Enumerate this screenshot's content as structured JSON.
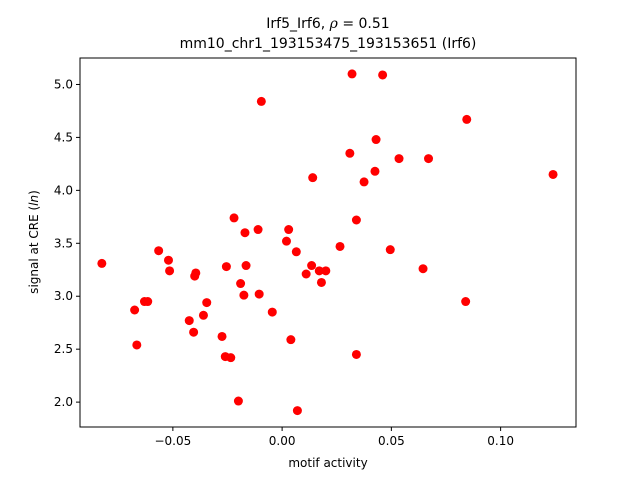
{
  "chart_data": {
    "type": "scatter",
    "title_line1_prefix": "Irf5_Irf6, ",
    "title_line1_rho": "ρ",
    "title_line1_suffix": " = 0.51",
    "title_line2": "mm10_chr1_193153475_193153651 (Irf6)",
    "xlabel": "motif activity",
    "ylabel_prefix": "signal at CRE (",
    "ylabel_italic": "ln",
    "ylabel_suffix": ")",
    "xlim": [
      -0.0925,
      0.1345
    ],
    "ylim": [
      1.765,
      5.25
    ],
    "xticks": [
      -0.05,
      0.0,
      0.05,
      0.1
    ],
    "xtick_labels": [
      "−0.05",
      "0.00",
      "0.05",
      "0.10"
    ],
    "yticks": [
      2.0,
      2.5,
      3.0,
      3.5,
      4.0,
      4.5,
      5.0
    ],
    "ytick_labels": [
      "2.0",
      "2.5",
      "3.0",
      "3.5",
      "4.0",
      "4.5",
      "5.0"
    ],
    "marker_color": "#ff0000",
    "points": [
      {
        "x": -0.0825,
        "y": 3.31
      },
      {
        "x": -0.0675,
        "y": 2.87
      },
      {
        "x": -0.0665,
        "y": 2.54
      },
      {
        "x": -0.063,
        "y": 2.95
      },
      {
        "x": -0.0615,
        "y": 2.95
      },
      {
        "x": -0.0565,
        "y": 3.43
      },
      {
        "x": -0.052,
        "y": 3.34
      },
      {
        "x": -0.0515,
        "y": 3.24
      },
      {
        "x": -0.0425,
        "y": 2.77
      },
      {
        "x": -0.0405,
        "y": 2.66
      },
      {
        "x": -0.04,
        "y": 3.19
      },
      {
        "x": -0.0395,
        "y": 3.22
      },
      {
        "x": -0.036,
        "y": 2.82
      },
      {
        "x": -0.0345,
        "y": 2.94
      },
      {
        "x": -0.0275,
        "y": 2.62
      },
      {
        "x": -0.026,
        "y": 2.43
      },
      {
        "x": -0.0255,
        "y": 3.28
      },
      {
        "x": -0.0235,
        "y": 2.42
      },
      {
        "x": -0.022,
        "y": 3.74
      },
      {
        "x": -0.02,
        "y": 2.01
      },
      {
        "x": -0.019,
        "y": 3.12
      },
      {
        "x": -0.0175,
        "y": 3.01
      },
      {
        "x": -0.017,
        "y": 3.6
      },
      {
        "x": -0.0165,
        "y": 3.29
      },
      {
        "x": -0.011,
        "y": 3.63
      },
      {
        "x": -0.0105,
        "y": 3.02
      },
      {
        "x": -0.0095,
        "y": 4.84
      },
      {
        "x": -0.0045,
        "y": 2.85
      },
      {
        "x": 0.002,
        "y": 3.52
      },
      {
        "x": 0.003,
        "y": 3.63
      },
      {
        "x": 0.004,
        "y": 2.59
      },
      {
        "x": 0.0065,
        "y": 3.42
      },
      {
        "x": 0.007,
        "y": 1.92
      },
      {
        "x": 0.011,
        "y": 3.21
      },
      {
        "x": 0.0135,
        "y": 3.29
      },
      {
        "x": 0.014,
        "y": 4.12
      },
      {
        "x": 0.017,
        "y": 3.24
      },
      {
        "x": 0.018,
        "y": 3.13
      },
      {
        "x": 0.02,
        "y": 3.24
      },
      {
        "x": 0.0265,
        "y": 3.47
      },
      {
        "x": 0.031,
        "y": 4.35
      },
      {
        "x": 0.032,
        "y": 5.1
      },
      {
        "x": 0.034,
        "y": 3.72
      },
      {
        "x": 0.034,
        "y": 2.45
      },
      {
        "x": 0.0375,
        "y": 4.08
      },
      {
        "x": 0.0425,
        "y": 4.18
      },
      {
        "x": 0.043,
        "y": 4.48
      },
      {
        "x": 0.046,
        "y": 5.09
      },
      {
        "x": 0.0495,
        "y": 3.44
      },
      {
        "x": 0.0535,
        "y": 4.3
      },
      {
        "x": 0.0645,
        "y": 3.26
      },
      {
        "x": 0.067,
        "y": 4.3
      },
      {
        "x": 0.084,
        "y": 2.95
      },
      {
        "x": 0.0845,
        "y": 4.67
      },
      {
        "x": 0.124,
        "y": 4.15
      }
    ]
  }
}
